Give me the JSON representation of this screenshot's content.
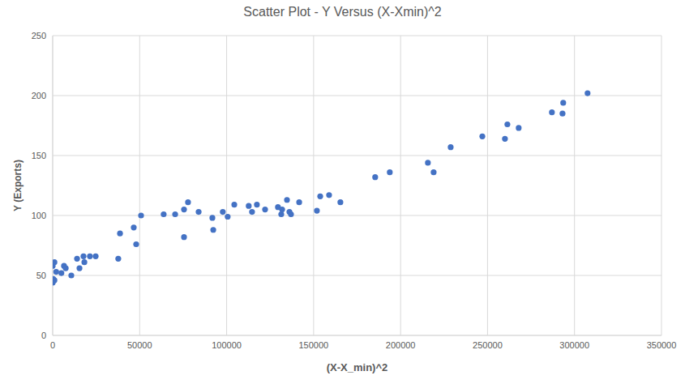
{
  "chart_data": {
    "type": "scatter",
    "title": "Scatter Plot - Y Versus (X-Xmin)^2",
    "x_label": "(X-X_min)^2",
    "y_label": "Y (Exports)",
    "color": "#4472c4",
    "grid": true,
    "xlim": [
      0,
      350000
    ],
    "xticks": [
      0,
      50000,
      100000,
      150000,
      200000,
      250000,
      300000,
      350000
    ],
    "ylim": [
      0,
      250
    ],
    "yticks": [
      0,
      50,
      100,
      150,
      200,
      250
    ],
    "x": [
      0,
      300,
      1000,
      0,
      1000,
      2000,
      5000,
      6500,
      7500,
      10700,
      14000,
      15400,
      17700,
      18200,
      21400,
      24700,
      37700,
      38700,
      46600,
      48000,
      50800,
      63800,
      70400,
      75500,
      75500,
      77800,
      83900,
      91800,
      92300,
      97800,
      100600,
      104400,
      112700,
      114600,
      117400,
      122100,
      129500,
      131400,
      131900,
      134700,
      136100,
      137000,
      141700,
      151900,
      153800,
      158900,
      165400,
      185400,
      193800,
      215700,
      219000,
      228800,
      247000,
      260000,
      261400,
      267900,
      287000,
      293100,
      293500,
      307500
    ],
    "values": [
      44,
      47,
      46,
      58,
      61,
      53,
      52,
      58,
      56,
      50,
      64,
      56,
      66,
      61,
      66,
      66,
      64,
      85,
      90,
      76,
      100,
      101,
      101,
      105,
      82,
      111,
      103,
      98,
      88,
      103,
      99,
      109,
      108,
      103,
      109,
      105,
      107,
      101,
      105,
      113,
      103,
      101,
      111,
      104,
      116,
      117,
      111,
      132,
      136,
      144,
      136,
      157,
      166,
      164,
      176,
      173,
      186,
      185,
      194,
      202
    ]
  }
}
